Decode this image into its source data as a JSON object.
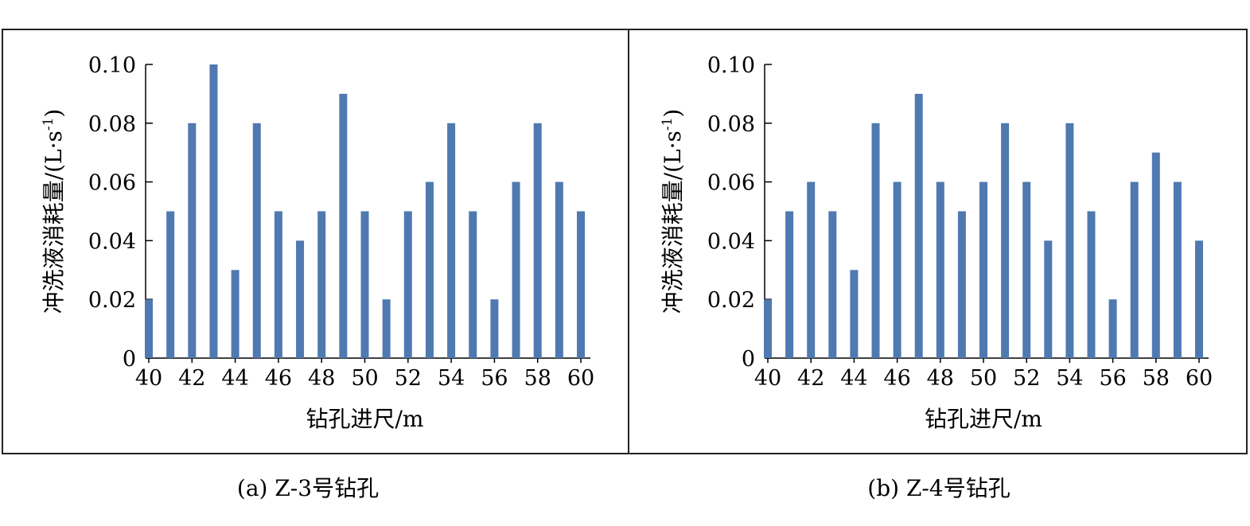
{
  "chart_data": [
    {
      "type": "bar",
      "ylabel": "冲洗液消耗量/(L·s",
      "ylabel_sup": "-1",
      "ylabel_close": ")",
      "xlabel": "钻孔进尺/m",
      "caption": "(a) Z-3号钻孔",
      "x": [
        40,
        41,
        42,
        43,
        44,
        45,
        46,
        47,
        48,
        49,
        50,
        51,
        52,
        53,
        54,
        55,
        56,
        57,
        58,
        59,
        60
      ],
      "values": [
        0.02,
        0.05,
        0.08,
        0.1,
        0.03,
        0.08,
        0.05,
        0.04,
        0.05,
        0.09,
        0.05,
        0.02,
        0.05,
        0.06,
        0.08,
        0.05,
        0.02,
        0.06,
        0.08,
        0.06,
        0.05
      ],
      "xticks": [
        "40",
        "42",
        "44",
        "46",
        "48",
        "50",
        "52",
        "54",
        "56",
        "58",
        "60"
      ],
      "yticks": [
        "0",
        "0.02",
        "0.04",
        "0.06",
        "0.08",
        "0.10"
      ],
      "ylim": [
        0,
        0.1
      ],
      "xlim": [
        40,
        60
      ],
      "bar_color": "#4f79b0",
      "grid": false
    },
    {
      "type": "bar",
      "ylabel": "冲洗液消耗量/(L·s",
      "ylabel_sup": "-1",
      "ylabel_close": ")",
      "xlabel": "钻孔进尺/m",
      "caption": "(b) Z-4号钻孔",
      "x": [
        40,
        41,
        42,
        43,
        44,
        45,
        46,
        47,
        48,
        49,
        50,
        51,
        52,
        53,
        54,
        55,
        56,
        57,
        58,
        59,
        60
      ],
      "values": [
        0.02,
        0.05,
        0.06,
        0.05,
        0.03,
        0.08,
        0.06,
        0.09,
        0.06,
        0.05,
        0.06,
        0.08,
        0.06,
        0.04,
        0.08,
        0.05,
        0.02,
        0.06,
        0.07,
        0.06,
        0.04
      ],
      "xticks": [
        "40",
        "42",
        "44",
        "46",
        "48",
        "50",
        "52",
        "54",
        "56",
        "58",
        "60"
      ],
      "yticks": [
        "0",
        "0.02",
        "0.04",
        "0.06",
        "0.08",
        "0.10"
      ],
      "ylim": [
        0,
        0.1
      ],
      "xlim": [
        40,
        60
      ],
      "bar_color": "#4f79b0",
      "grid": false
    }
  ]
}
